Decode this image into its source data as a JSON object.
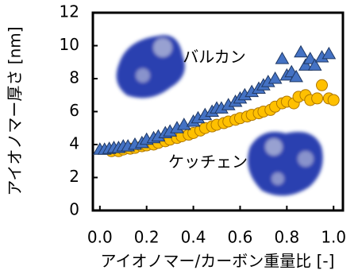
{
  "chart_data": {
    "type": "scatter",
    "xlabel": "アイオノマー/カーボン重量比 [-]",
    "ylabel": "アイオノマー厚さ [nm]",
    "xlim": [
      -0.03,
      1.04
    ],
    "ylim": [
      0,
      12
    ],
    "xticks": [
      {
        "value": 0,
        "label": "0.0"
      },
      {
        "value": 0.2,
        "label": "0.2"
      },
      {
        "value": 0.4,
        "label": "0.4"
      },
      {
        "value": 0.6,
        "label": "0.6"
      },
      {
        "value": 0.8,
        "label": "0.8"
      },
      {
        "value": 1,
        "label": "1.0"
      }
    ],
    "yticks": [
      0,
      2,
      4,
      6,
      8,
      10,
      12
    ],
    "series": [
      {
        "name": "バルカン",
        "color": "#4472c4",
        "marker": "triangle",
        "x": [
          0,
          0.02,
          0.04,
          0.06,
          0.08,
          0.1,
          0.12,
          0.15,
          0.18,
          0.2,
          0.23,
          0.25,
          0.28,
          0.3,
          0.33,
          0.36,
          0.4,
          0.42,
          0.45,
          0.48,
          0.5,
          0.52,
          0.55,
          0.58,
          0.6,
          0.62,
          0.65,
          0.68,
          0.7,
          0.72,
          0.75,
          0.78,
          0.8,
          0.82,
          0.84,
          0.86,
          0.88,
          0.9,
          0.92,
          0.95,
          0.98
        ],
        "values": [
          3.7,
          3.7,
          3.75,
          3.8,
          3.8,
          3.9,
          3.9,
          4.0,
          4.1,
          4.3,
          4.4,
          4.5,
          4.7,
          4.8,
          5.0,
          5.2,
          5.4,
          5.6,
          5.8,
          6.0,
          6.2,
          6.2,
          6.4,
          6.6,
          6.8,
          7.0,
          7.2,
          7.4,
          7.6,
          7.8,
          8.0,
          9.2,
          8.2,
          8.4,
          8.1,
          9.6,
          8.8,
          9.2,
          8.8,
          9.3,
          9.5
        ]
      },
      {
        "name": "ケッチェン",
        "color": "#ffc000",
        "marker": "circle",
        "x": [
          0.05,
          0.08,
          0.1,
          0.13,
          0.15,
          0.18,
          0.2,
          0.23,
          0.25,
          0.28,
          0.3,
          0.33,
          0.35,
          0.38,
          0.4,
          0.43,
          0.45,
          0.48,
          0.5,
          0.53,
          0.55,
          0.58,
          0.6,
          0.63,
          0.65,
          0.68,
          0.7,
          0.73,
          0.75,
          0.78,
          0.8,
          0.83,
          0.85,
          0.88,
          0.9,
          0.93,
          0.95,
          0.98,
          1.0
        ],
        "values": [
          3.6,
          3.6,
          3.7,
          3.75,
          3.8,
          3.9,
          3.95,
          4.0,
          4.1,
          4.2,
          4.3,
          4.4,
          4.5,
          4.6,
          4.7,
          4.85,
          5.0,
          5.1,
          5.2,
          5.3,
          5.4,
          5.5,
          5.6,
          5.7,
          5.8,
          5.9,
          6.0,
          6.1,
          6.3,
          6.5,
          6.6,
          6.5,
          6.9,
          7.0,
          6.7,
          6.8,
          7.6,
          6.8,
          6.7
        ]
      }
    ]
  }
}
